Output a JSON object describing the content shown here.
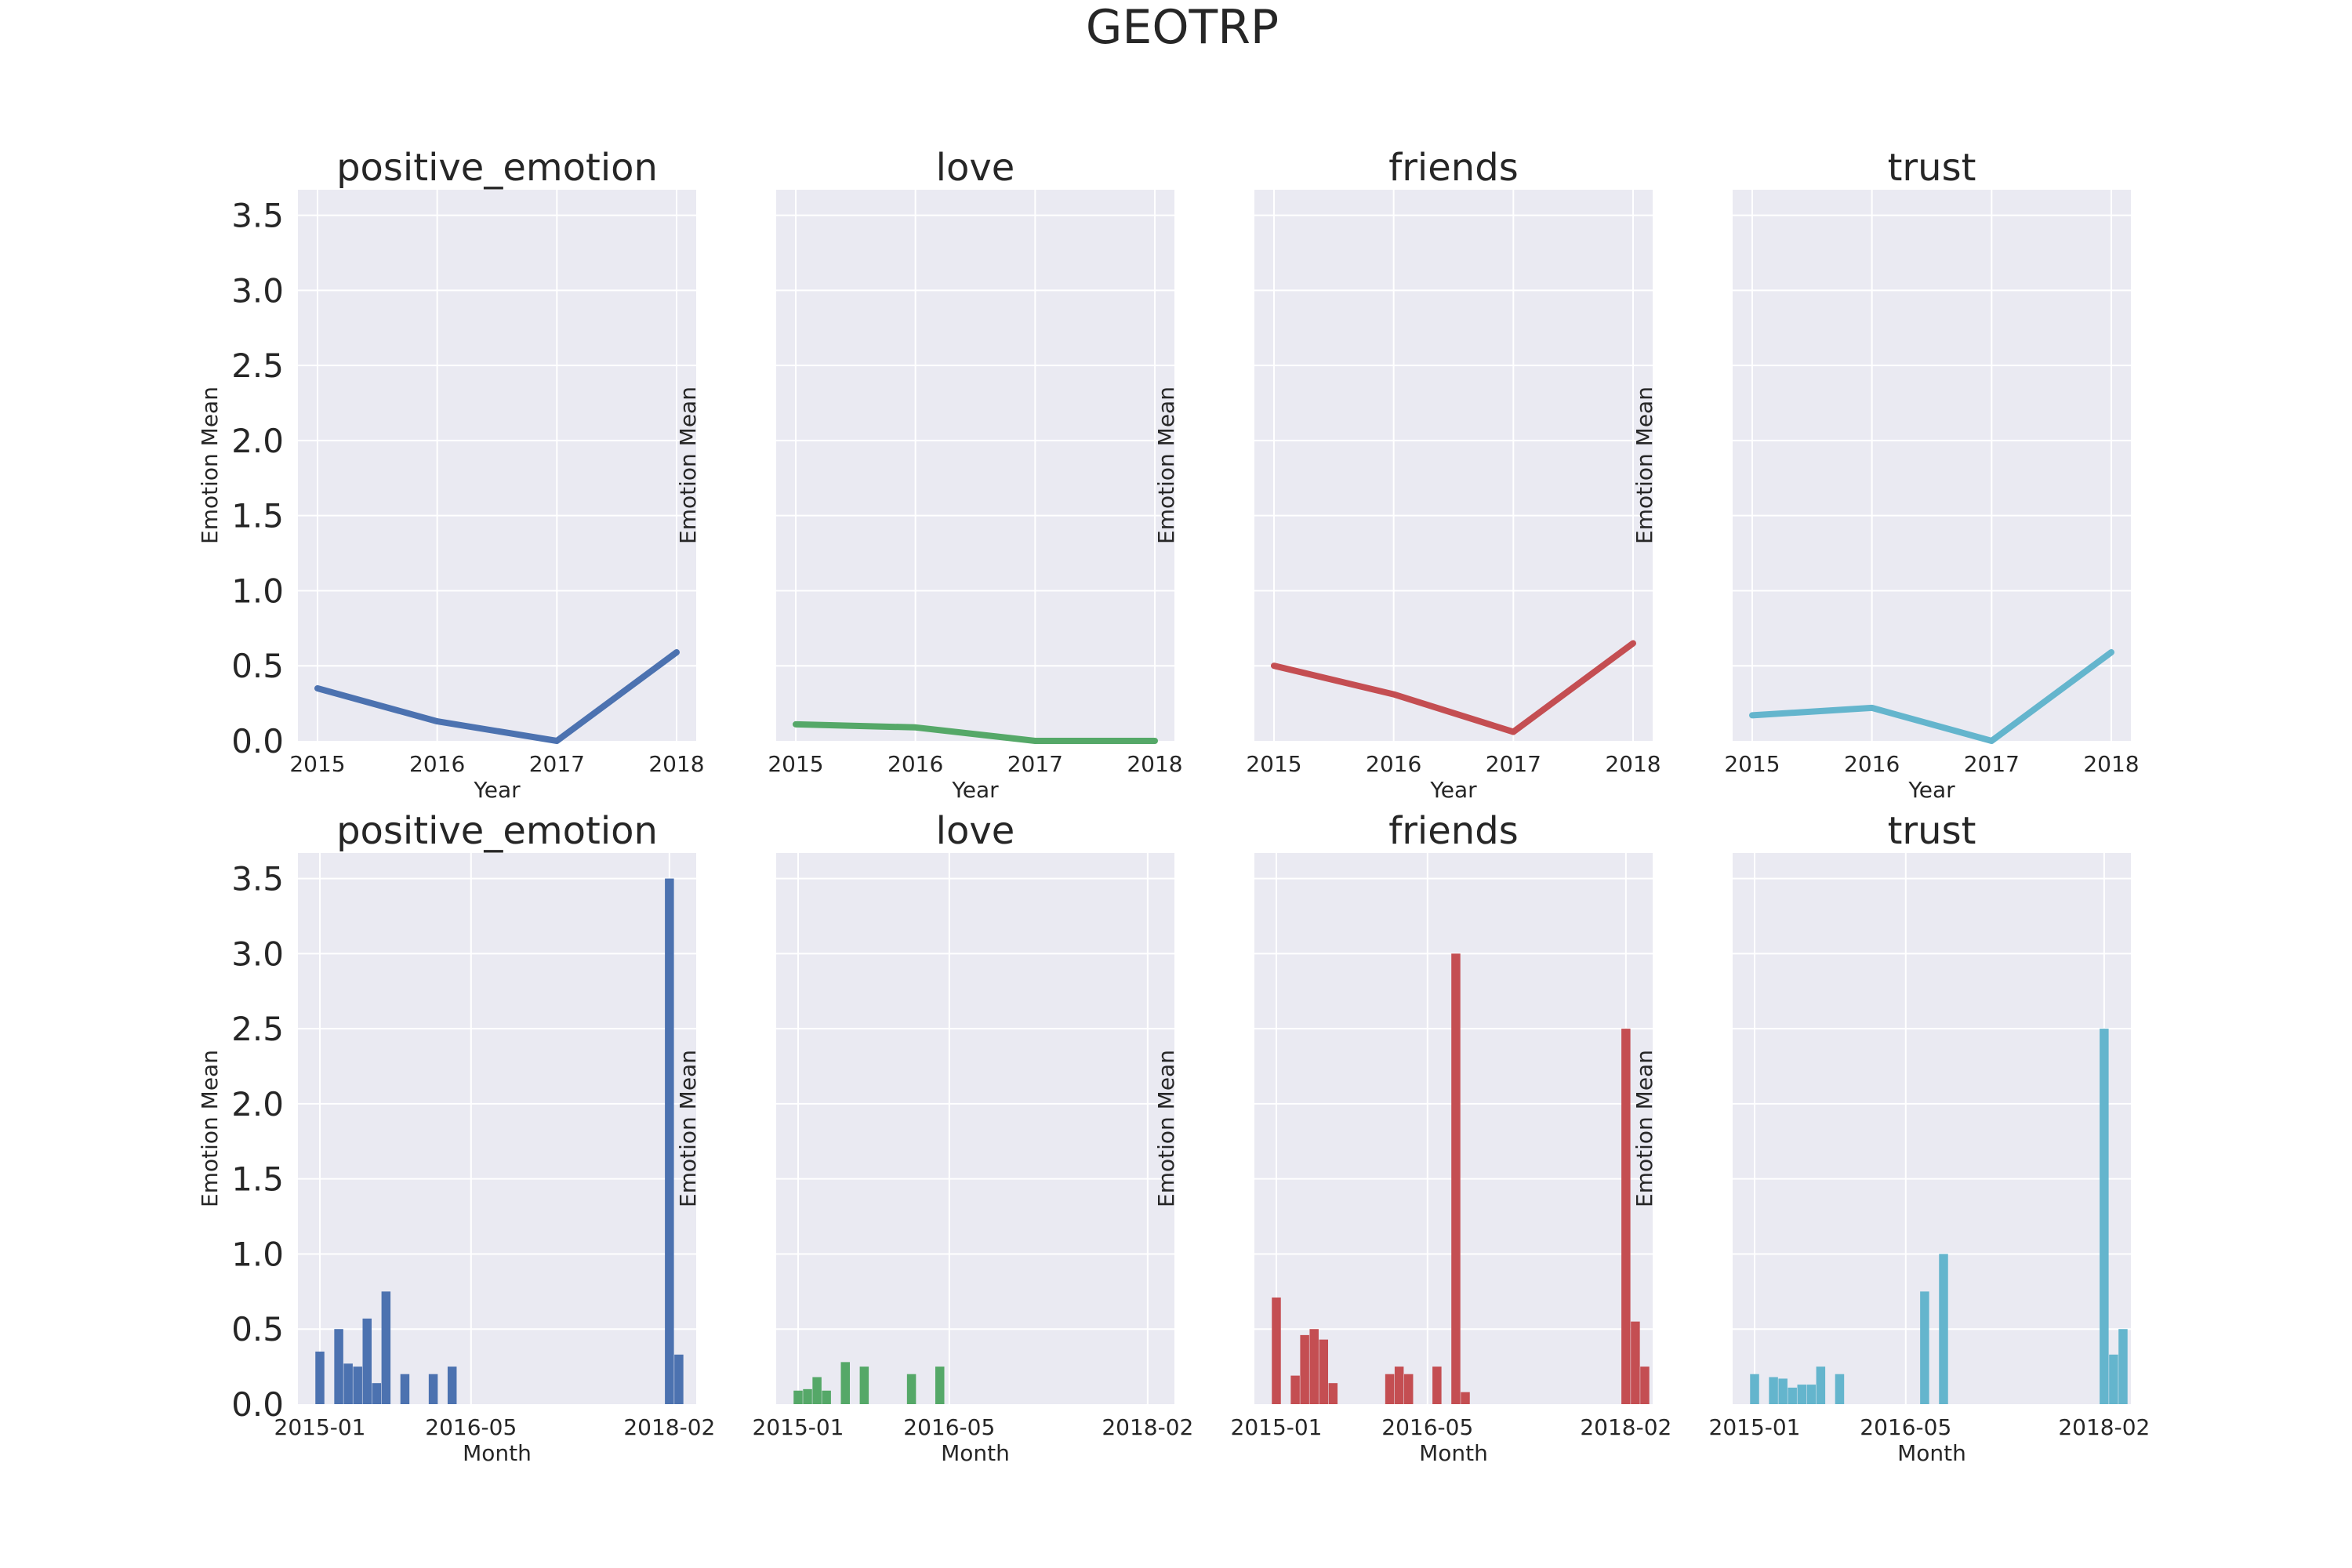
{
  "figure": {
    "title": "GEOTRP"
  },
  "chart_data": [
    {
      "type": "line",
      "title": "positive_emotion",
      "xlabel": "Year",
      "ylabel": "Emotion Mean",
      "x": [
        2015,
        2016,
        2017,
        2018
      ],
      "x_ticks": [
        "2015",
        "2016",
        "2017",
        "2018"
      ],
      "y_ticks": [
        "0.0",
        "0.5",
        "1.0",
        "1.5",
        "2.0",
        "2.5",
        "3.0",
        "3.5"
      ],
      "values": [
        0.35,
        0.13,
        0.0,
        0.59
      ],
      "ylim": [
        0,
        3.67
      ],
      "grid": true,
      "color": "#4c72b0"
    },
    {
      "type": "line",
      "title": "love",
      "xlabel": "Year",
      "ylabel": "Emotion Mean",
      "x": [
        2015,
        2016,
        2017,
        2018
      ],
      "x_ticks": [
        "2015",
        "2016",
        "2017",
        "2018"
      ],
      "values": [
        0.11,
        0.09,
        0.0,
        0.0
      ],
      "ylim": [
        0,
        3.67
      ],
      "grid": true,
      "color": "#55a868"
    },
    {
      "type": "line",
      "title": "friends",
      "xlabel": "Year",
      "ylabel": "Emotion Mean",
      "x": [
        2015,
        2016,
        2017,
        2018
      ],
      "x_ticks": [
        "2015",
        "2016",
        "2017",
        "2018"
      ],
      "values": [
        0.5,
        0.31,
        0.06,
        0.65
      ],
      "ylim": [
        0,
        3.67
      ],
      "grid": true,
      "color": "#c44e52"
    },
    {
      "type": "line",
      "title": "trust",
      "xlabel": "Year",
      "ylabel": "Emotion Mean",
      "x": [
        2015,
        2016,
        2017,
        2018
      ],
      "x_ticks": [
        "2015",
        "2016",
        "2017",
        "2018"
      ],
      "values": [
        0.17,
        0.22,
        0.0,
        0.59
      ],
      "ylim": [
        0,
        3.67
      ],
      "grid": true,
      "color": "#64b5cd"
    },
    {
      "type": "bar",
      "title": "positive_emotion",
      "xlabel": "Month",
      "ylabel": "Emotion Mean",
      "x_ticks": [
        "2015-01",
        "2016-05",
        "2018-02"
      ],
      "y_ticks": [
        "0.0",
        "0.5",
        "1.0",
        "1.5",
        "2.0",
        "2.5",
        "3.0",
        "3.5"
      ],
      "categories": [
        "2015-01",
        "2015-03",
        "2015-04",
        "2015-05",
        "2015-06",
        "2015-07",
        "2015-08",
        "2015-10",
        "2016-01",
        "2016-03",
        "2018-02",
        "2018-03"
      ],
      "values": [
        0.35,
        0.5,
        0.27,
        0.25,
        0.57,
        0.14,
        0.75,
        0.2,
        0.2,
        0.25,
        3.5,
        0.33
      ],
      "ylim": [
        0,
        3.67
      ],
      "grid": true,
      "color": "#4c72b0"
    },
    {
      "type": "bar",
      "title": "love",
      "xlabel": "Month",
      "ylabel": "Emotion Mean",
      "x_ticks": [
        "2015-01",
        "2016-05",
        "2018-02"
      ],
      "categories": [
        "2015-01",
        "2015-02",
        "2015-03",
        "2015-04",
        "2015-06",
        "2015-08",
        "2016-01",
        "2016-04"
      ],
      "values": [
        0.09,
        0.1,
        0.18,
        0.09,
        0.28,
        0.25,
        0.2,
        0.25
      ],
      "ylim": [
        0,
        3.67
      ],
      "grid": true,
      "color": "#55a868"
    },
    {
      "type": "bar",
      "title": "friends",
      "xlabel": "Month",
      "ylabel": "Emotion Mean",
      "x_ticks": [
        "2015-01",
        "2016-05",
        "2018-02"
      ],
      "categories": [
        "2015-01",
        "2015-03",
        "2015-04",
        "2015-05",
        "2015-06",
        "2015-07",
        "2016-01",
        "2016-02",
        "2016-03",
        "2016-06",
        "2016-08",
        "2016-09",
        "2018-02",
        "2018-03",
        "2018-04"
      ],
      "values": [
        0.71,
        0.19,
        0.46,
        0.5,
        0.43,
        0.14,
        0.2,
        0.25,
        0.2,
        0.25,
        3.0,
        0.08,
        2.5,
        0.55,
        0.25
      ],
      "ylim": [
        0,
        3.67
      ],
      "grid": true,
      "color": "#c44e52"
    },
    {
      "type": "bar",
      "title": "trust",
      "xlabel": "Month",
      "ylabel": "Emotion Mean",
      "x_ticks": [
        "2015-01",
        "2016-05",
        "2018-02"
      ],
      "categories": [
        "2015-01",
        "2015-03",
        "2015-04",
        "2015-05",
        "2015-06",
        "2015-07",
        "2015-08",
        "2015-10",
        "2016-07",
        "2016-09",
        "2018-02",
        "2018-03",
        "2018-04"
      ],
      "values": [
        0.2,
        0.18,
        0.17,
        0.11,
        0.13,
        0.13,
        0.25,
        0.2,
        0.75,
        1.0,
        2.5,
        0.33,
        0.5
      ],
      "ylim": [
        0,
        3.67
      ],
      "grid": true,
      "color": "#64b5cd"
    }
  ]
}
